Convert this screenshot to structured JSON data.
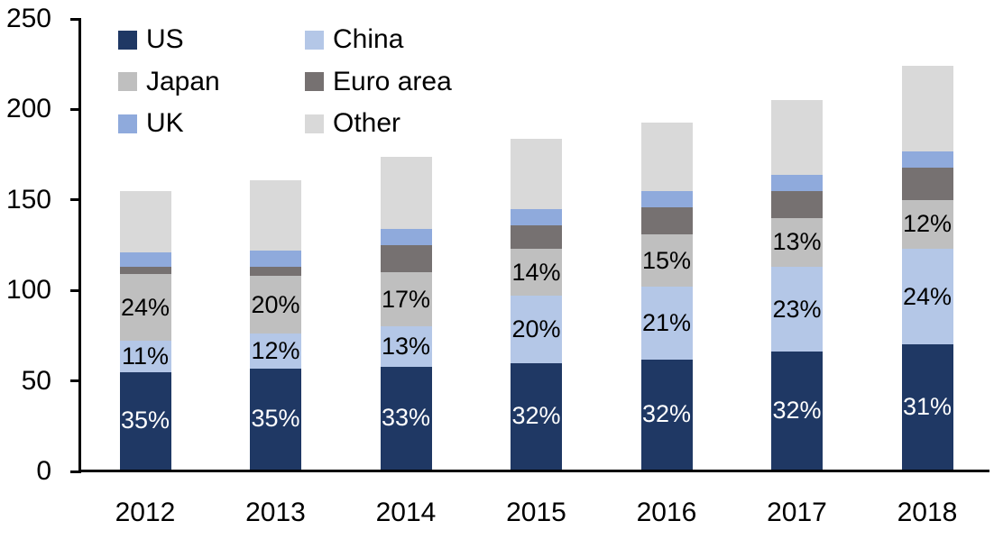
{
  "chart_data": {
    "type": "bar",
    "stacked": true,
    "title": "",
    "xlabel": "",
    "ylabel": "",
    "grid": false,
    "categories": [
      "2012",
      "2013",
      "2014",
      "2015",
      "2016",
      "2017",
      "2018"
    ],
    "series": [
      {
        "name": "US",
        "color": "#1F3864",
        "values": [
          54,
          56,
          57,
          59,
          61,
          65,
          69
        ],
        "segment_labels": [
          "35%",
          "35%",
          "33%",
          "32%",
          "32%",
          "32%",
          "31%"
        ],
        "label_color": "#FFFFFF"
      },
      {
        "name": "China",
        "color": "#B4C7E7",
        "values": [
          17,
          19,
          22,
          37,
          40,
          47,
          53
        ],
        "segment_labels": [
          "11%",
          "12%",
          "13%",
          "20%",
          "21%",
          "23%",
          "24%"
        ],
        "label_color": "#000000"
      },
      {
        "name": "Japan",
        "color": "#BFBFBF",
        "values": [
          37,
          32,
          30,
          26,
          29,
          27,
          27
        ],
        "segment_labels": [
          "24%",
          "20%",
          "17%",
          "14%",
          "15%",
          "13%",
          "12%"
        ],
        "label_color": "#000000"
      },
      {
        "name": "Euro area",
        "color": "#767171",
        "values": [
          4,
          5,
          15,
          13,
          15,
          15,
          18
        ],
        "segment_labels": null,
        "label_color": "#000000"
      },
      {
        "name": "UK",
        "color": "#8FAADC",
        "values": [
          8,
          9,
          9,
          9,
          9,
          9,
          9
        ],
        "segment_labels": null,
        "label_color": "#000000"
      },
      {
        "name": "Other",
        "color": "#D9D9D9",
        "values": [
          34,
          39,
          40,
          39,
          38,
          41,
          47
        ],
        "segment_labels": null,
        "label_color": "#000000"
      }
    ],
    "totals": [
      154,
      160,
      173,
      183,
      192,
      204,
      223
    ],
    "y_axis": {
      "min": 0,
      "max": 250,
      "tick_step": 50,
      "ticks": [
        0,
        50,
        100,
        150,
        200,
        250
      ]
    },
    "legend": {
      "position": "inside-top-left",
      "columns": [
        [
          "US",
          "Japan",
          "UK"
        ],
        [
          "China",
          "Euro area",
          "Other"
        ]
      ]
    }
  }
}
